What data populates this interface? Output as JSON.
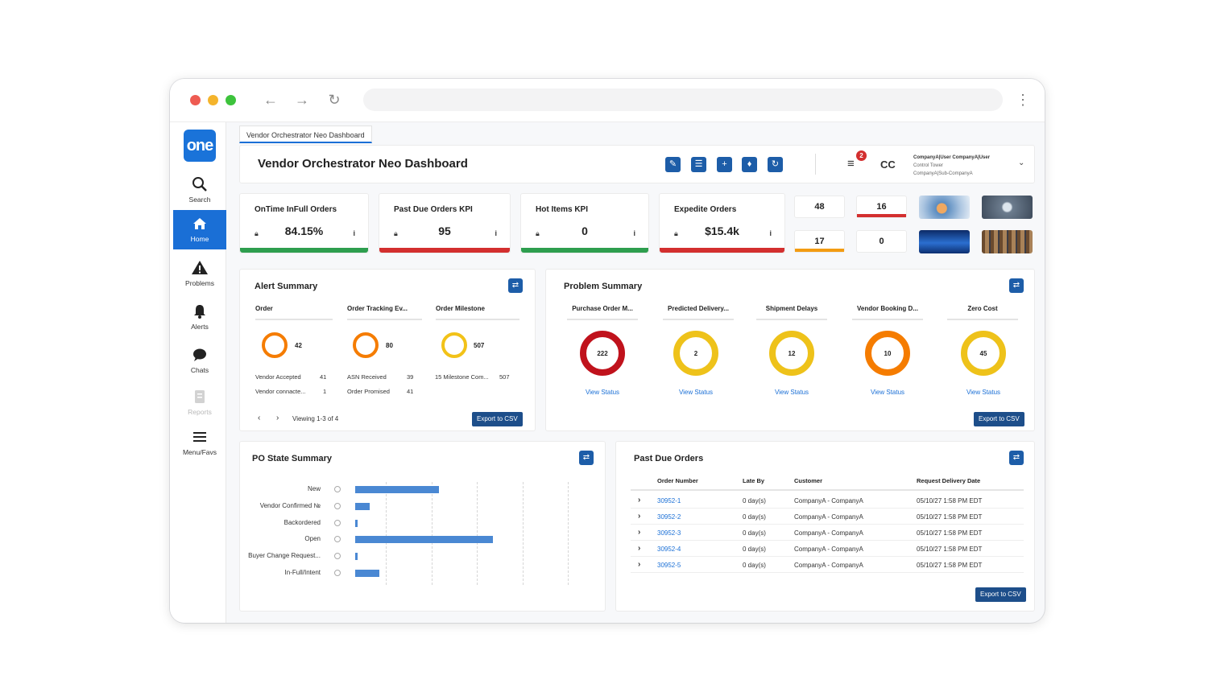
{
  "browser": {
    "controls": [
      "arrow-left-icon",
      "arrow-right-icon",
      "reload-icon",
      "kebab-menu-icon"
    ]
  },
  "sidebar": {
    "logo": "one",
    "items": [
      {
        "label": "Search",
        "icon": "search-icon"
      },
      {
        "label": "Home",
        "icon": "home-icon",
        "active": true
      },
      {
        "label": "Problems",
        "icon": "warning-icon"
      },
      {
        "label": "Alerts",
        "icon": "bell-icon"
      },
      {
        "label": "Chats",
        "icon": "chat-icon"
      },
      {
        "label": "Reports",
        "icon": "reports-icon",
        "disabled": true
      },
      {
        "label": "Menu/Favs",
        "icon": "hamburger-icon"
      }
    ]
  },
  "tab": {
    "label": "Vendor Orchestrator Neo Dashboard"
  },
  "header": {
    "title": "Vendor Orchestrator Neo Dashboard",
    "tools": [
      "edit-icon",
      "list-icon",
      "add-icon",
      "bell-icon",
      "refresh-icon"
    ],
    "notification_count": "2",
    "initials": "CC",
    "user": {
      "name": "CompanyA|User CompanyA|User",
      "role": "Control Tower",
      "org": "CompanyA|Sub-CompanyA"
    }
  },
  "kpis": [
    {
      "title": "OnTime InFull Orders",
      "value": "84.15%",
      "info": "i",
      "color": "#2e9e4f"
    },
    {
      "title": "Past Due Orders KPI",
      "value": "95",
      "info": "i",
      "color": "#d32f2f"
    },
    {
      "title": "Hot Items KPI",
      "value": "0",
      "info": "i",
      "color": "#2e9e4f"
    },
    {
      "title": "Expedite Orders",
      "value": "$15.4k",
      "info": "i",
      "color": "#d32f2f"
    }
  ],
  "mini_kpis": [
    {
      "value": "48",
      "color": ""
    },
    {
      "value": "16",
      "color": "#d32f2f"
    },
    {
      "value": "17",
      "color": "#f39c12"
    },
    {
      "value": "0",
      "color": ""
    }
  ],
  "alert_summary": {
    "title": "Alert Summary",
    "columns": [
      {
        "head": "Order",
        "total": "42",
        "color": "#f57c00",
        "rows": [
          {
            "label": "Vendor Accepted",
            "value": "41"
          },
          {
            "label": "Vendor connacte...",
            "value": "1"
          }
        ]
      },
      {
        "head": "Order Tracking Ev...",
        "total": "80",
        "color": "#f57c00",
        "rows": [
          {
            "label": "ASN Received",
            "value": "39"
          },
          {
            "label": "Order Promised",
            "value": "41"
          }
        ]
      },
      {
        "head": "Order Milestone",
        "total": "507",
        "color": "#f2c218",
        "rows": [
          {
            "label": "15 Milestone Com...",
            "value": "507"
          }
        ]
      }
    ],
    "pager": "Viewing 1-3 of 4",
    "export": "Export to CSV"
  },
  "problem_summary": {
    "title": "Problem Summary",
    "items": [
      {
        "head": "Purchase Order M...",
        "value": "222",
        "color": "#c0121c",
        "link": "View Status"
      },
      {
        "head": "Predicted Delivery...",
        "value": "2",
        "color": "#eec21a",
        "link": "View Status"
      },
      {
        "head": "Shipment Delays",
        "value": "12",
        "color": "#eec21a",
        "link": "View Status"
      },
      {
        "head": "Vendor Booking D...",
        "value": "10",
        "color": "#f57c00",
        "link": "View Status"
      },
      {
        "head": "Zero Cost",
        "value": "45",
        "color": "#eec21a",
        "link": "View Status"
      }
    ],
    "export": "Export to CSV"
  },
  "po_state": {
    "title": "PO State Summary",
    "chart_data": {
      "type": "bar",
      "orientation": "horizontal",
      "categories": [
        "New",
        "Vendor Confirmed №",
        "Backordered",
        "Open",
        "Buyer Change Request...",
        "In-Full/Intent"
      ],
      "values": [
        45,
        8,
        1,
        74,
        1,
        13
      ],
      "xlim": [
        0,
        110
      ],
      "grid": true
    }
  },
  "past_due": {
    "title": "Past Due Orders",
    "headers": [
      "Order Number",
      "Late By",
      "Customer",
      "Request Delivery Date"
    ],
    "rows": [
      [
        "30952-1",
        "0 day(s)",
        "CompanyA - CompanyA",
        "05/10/27 1:58 PM EDT"
      ],
      [
        "30952-2",
        "0 day(s)",
        "CompanyA - CompanyA",
        "05/10/27 1:58 PM EDT"
      ],
      [
        "30952-3",
        "0 day(s)",
        "CompanyA - CompanyA",
        "05/10/27 1:58 PM EDT"
      ],
      [
        "30952-4",
        "0 day(s)",
        "CompanyA - CompanyA",
        "05/10/27 1:58 PM EDT"
      ],
      [
        "30952-5",
        "0 day(s)",
        "CompanyA - CompanyA",
        "05/10/27 1:58 PM EDT"
      ]
    ],
    "export": "Export to CSV"
  }
}
